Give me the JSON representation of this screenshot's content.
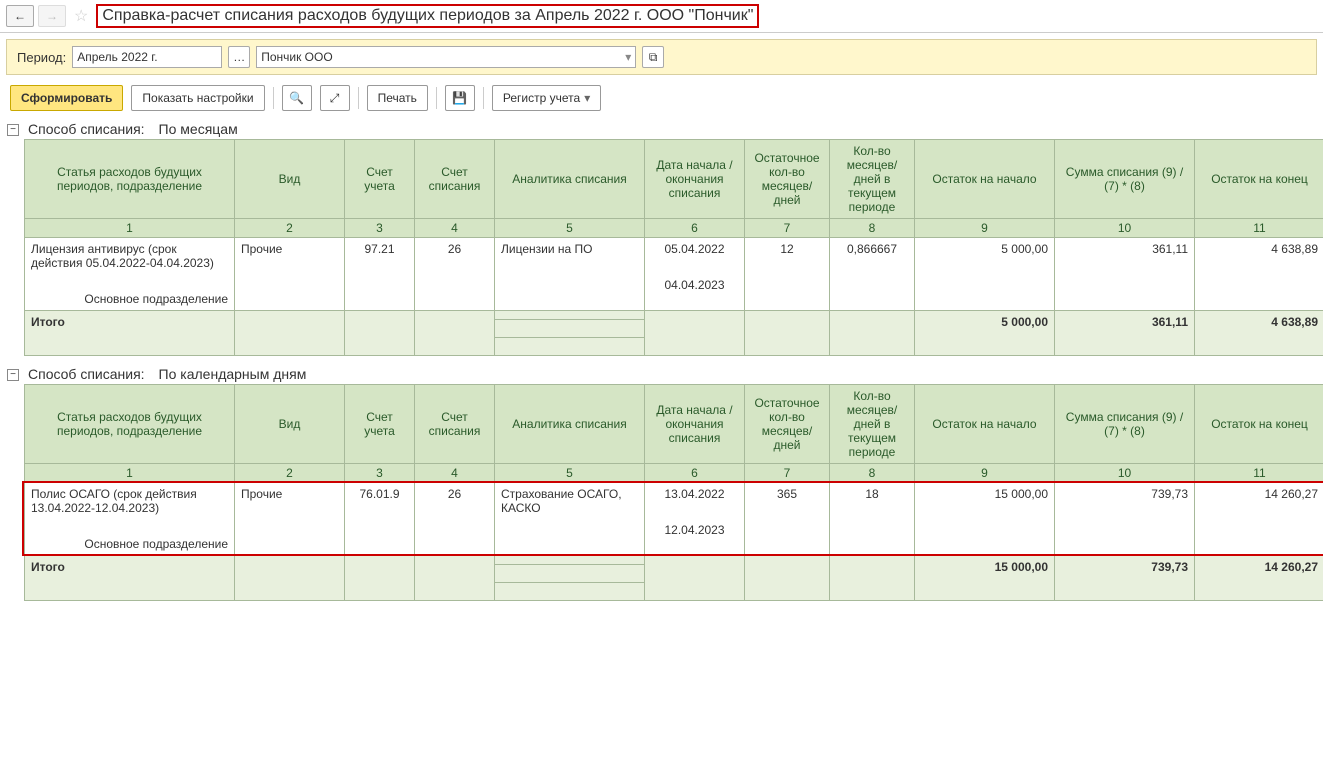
{
  "nav": {
    "back": "←",
    "fwd": "→"
  },
  "title": "Справка-расчет списания расходов будущих периодов за Апрель 2022 г. ООО \"Пончик\"",
  "params": {
    "period_label": "Период:",
    "period_value": "Апрель 2022 г.",
    "org_value": "Пончик ООО"
  },
  "toolbar": {
    "generate": "Сформировать",
    "show_settings": "Показать настройки",
    "print": "Печать",
    "register": "Регистр учета"
  },
  "columns": {
    "c1": "Статья расходов будущих периодов, подразделение",
    "c2": "Вид",
    "c3": "Счет учета",
    "c4": "Счет списания",
    "c5": "Аналитика списания",
    "c6": "Дата начала / окончания списания",
    "c7": "Остаточное кол-во месяцев/ дней",
    "c8": "Кол-во месяцев/ дней в текущем периоде",
    "c9": "Остаток на начало",
    "c10": "Сумма списания (9) / (7) * (8)",
    "c11": "Остаток на конец"
  },
  "colnums": {
    "n1": "1",
    "n2": "2",
    "n3": "3",
    "n4": "4",
    "n5": "5",
    "n6": "6",
    "n7": "7",
    "n8": "8",
    "n9": "9",
    "n10": "10",
    "n11": "11"
  },
  "section1": {
    "method_label": "Способ списания:",
    "method_value": "По месяцам",
    "row": {
      "article_main": "Лицензия антивирус (срок действия 05.04.2022-04.04.2023)",
      "article_sub": "Основное подразделение",
      "kind": "Прочие",
      "acc": "97.21",
      "acc_off": "26",
      "analytics": "Лицензии на ПО",
      "date_start": "05.04.2022",
      "date_end": "04.04.2023",
      "remain_qty": "12",
      "cur_qty": "0,866667",
      "balance_start": "5 000,00",
      "writeoff": "361,11",
      "balance_end": "4 638,89"
    },
    "total_label": "Итого",
    "total": {
      "balance_start": "5 000,00",
      "writeoff": "361,11",
      "balance_end": "4 638,89"
    }
  },
  "section2": {
    "method_label": "Способ списания:",
    "method_value": "По календарным дням",
    "row": {
      "article_main": "Полис ОСАГО (срок действия 13.04.2022-12.04.2023)",
      "article_sub": "Основное подразделение",
      "kind": "Прочие",
      "acc": "76.01.9",
      "acc_off": "26",
      "analytics": "Страхование ОСАГО, КАСКО",
      "date_start": "13.04.2022",
      "date_end": "12.04.2023",
      "remain_qty": "365",
      "cur_qty": "18",
      "balance_start": "15 000,00",
      "writeoff": "739,73",
      "balance_end": "14 260,27"
    },
    "total_label": "Итого",
    "total": {
      "balance_start": "15 000,00",
      "writeoff": "739,73",
      "balance_end": "14 260,27"
    }
  }
}
